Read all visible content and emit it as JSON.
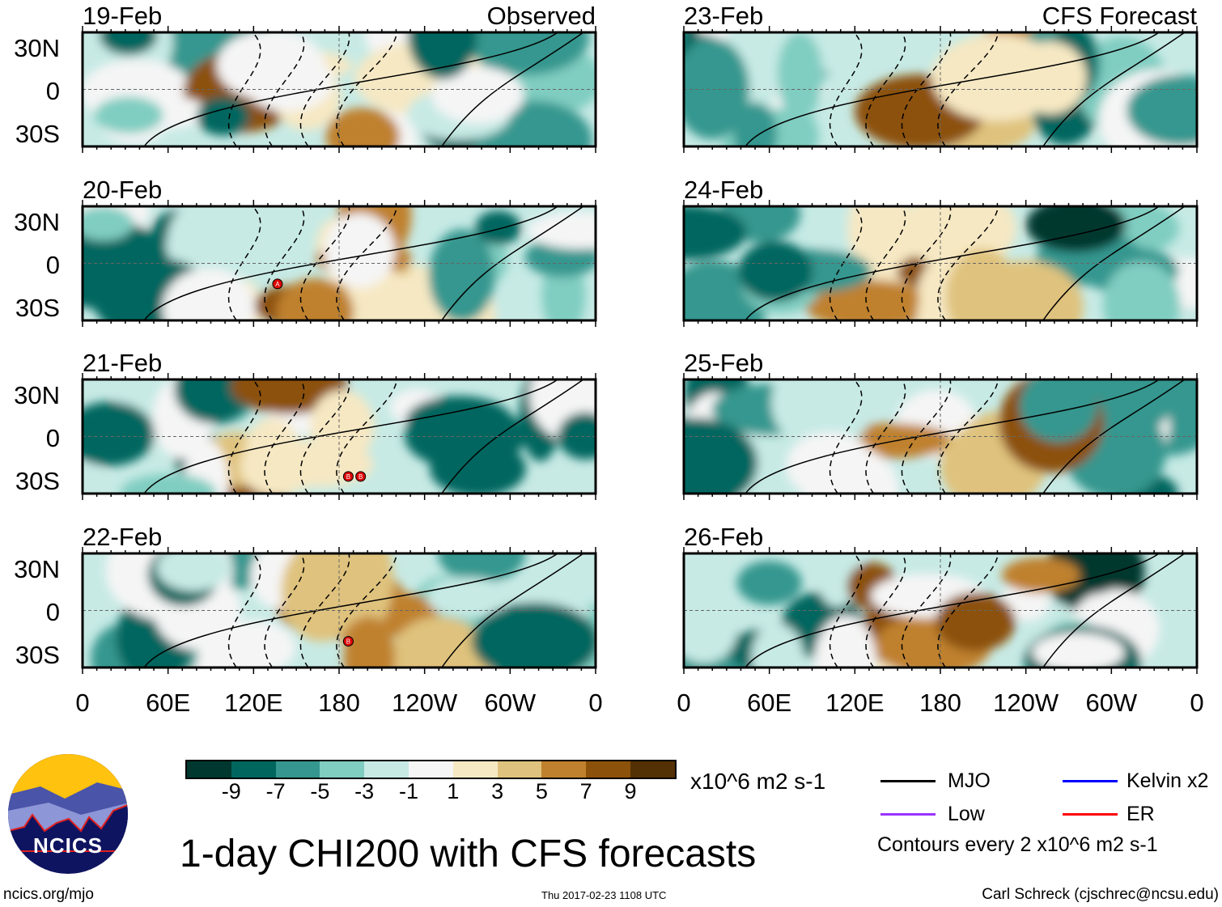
{
  "panels": [
    {
      "date": "19-Feb",
      "label": "Observed",
      "storms": []
    },
    {
      "date": "20-Feb",
      "storms": [
        "A"
      ]
    },
    {
      "date": "21-Feb",
      "storms": [
        "B",
        "B"
      ]
    },
    {
      "date": "22-Feb",
      "storms": [
        "B"
      ]
    },
    {
      "date": "23-Feb",
      "label": "CFS Forecast",
      "storms": []
    },
    {
      "date": "24-Feb",
      "storms": []
    },
    {
      "date": "25-Feb",
      "storms": []
    },
    {
      "date": "26-Feb",
      "storms": []
    }
  ],
  "lat_labels": [
    "30N",
    "0",
    "30S"
  ],
  "lon_labels": [
    "0",
    "60E",
    "120E",
    "180",
    "120W",
    "60W",
    "0"
  ],
  "colorbar": {
    "colors": [
      "#00382f",
      "#01665e",
      "#35978f",
      "#80cdc1",
      "#c7eae5",
      "#f5f5f5",
      "#f6e8c3",
      "#dfc27d",
      "#bf812d",
      "#8c510a",
      "#543005"
    ],
    "labels": [
      "-9",
      "-7",
      "-5",
      "-3",
      "-1",
      "1",
      "3",
      "5",
      "7",
      "9"
    ],
    "units": "x10^6 m2 s-1"
  },
  "legend": {
    "items": [
      {
        "label": "MJO",
        "color": "#000000"
      },
      {
        "label": "Kelvin x2",
        "color": "#0000ff"
      },
      {
        "label": "Low",
        "color": "#9933ff"
      },
      {
        "label": "ER",
        "color": "#ff0000"
      }
    ],
    "note": "Contours every 2 x10^6 m2 s-1"
  },
  "title": "1-day CHI200 with CFS forecasts",
  "logo": {
    "text": "NCICS"
  },
  "footer": {
    "site": "ncics.org/mjo",
    "timestamp": "Thu 2017-02-23 1108 UTC",
    "author": "Carl Schreck (cjschrec@ncsu.edu)"
  }
}
